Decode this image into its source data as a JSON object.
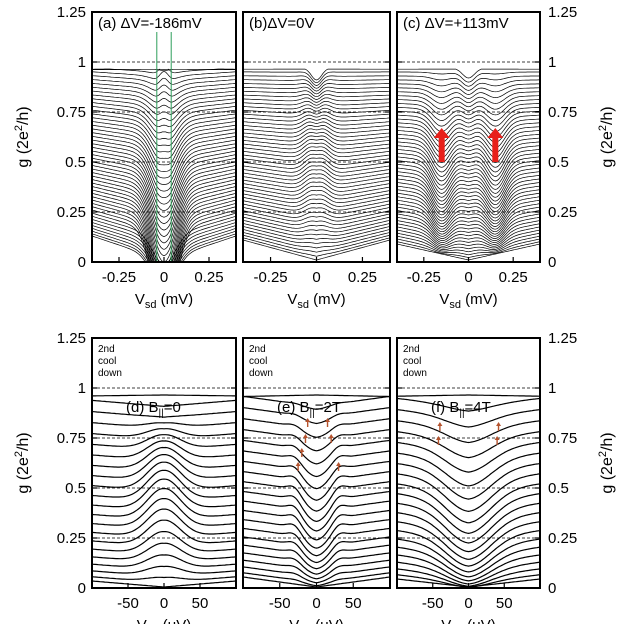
{
  "figure": {
    "ylabel_main": "g (2e",
    "ylabel_sup": "2",
    "ylabel_tail": "/h)",
    "xlabel_main": "V",
    "xlabel_sub": "sd"
  },
  "chart_data": [
    {
      "type": "line",
      "panel": "(a)",
      "title": "(a) ΔV=-186mV",
      "xunit": " (mV)",
      "xlim": [
        -0.4,
        0.4
      ],
      "ylim": [
        0,
        1.25
      ],
      "xticks": [
        -0.25,
        0,
        0.25
      ],
      "xtick_labels": [
        "-0.25",
        "0",
        "0.25"
      ],
      "yticks": [
        0,
        0.25,
        0.5,
        0.75,
        1,
        1.25
      ],
      "ytick_labels": [
        "0",
        "0.25",
        "0.5",
        "0.75",
        "1",
        "1.25"
      ],
      "reference_lines_y": [
        0.25,
        0.5,
        0.75,
        1.0
      ],
      "vertical_markers_x": [
        -0.04,
        0.04
      ],
      "vertical_marker_color": "#2e9e5a",
      "curve_count": 50,
      "trace_at_zero_bias": [
        0.02,
        0.03,
        0.05,
        0.07,
        0.1,
        0.13,
        0.16,
        0.2,
        0.24,
        0.28,
        0.32,
        0.36,
        0.4,
        0.44,
        0.48,
        0.52,
        0.56,
        0.6,
        0.64,
        0.68,
        0.72,
        0.76,
        0.8,
        0.84,
        0.88,
        0.91,
        0.94,
        0.96
      ]
    },
    {
      "type": "line",
      "panel": "(b)",
      "title": "(b)ΔV=0V",
      "xunit": " (mV)",
      "xlim": [
        -0.4,
        0.4
      ],
      "ylim": [
        0,
        1.25
      ],
      "xticks": [
        -0.25,
        0,
        0.25
      ],
      "xtick_labels": [
        "-0.25",
        "0",
        "0.25"
      ],
      "yticks": [
        0,
        0.25,
        0.5,
        0.75,
        1,
        1.25
      ],
      "reference_lines_y": [
        0.25,
        0.5,
        0.75,
        1.0
      ],
      "curve_count": 50,
      "trace_at_zero_bias": [
        0.02,
        0.04,
        0.07,
        0.11,
        0.15,
        0.2,
        0.25,
        0.3,
        0.35,
        0.4,
        0.45,
        0.5,
        0.55,
        0.6,
        0.65,
        0.7,
        0.75,
        0.8,
        0.85,
        0.9,
        0.94,
        0.98,
        1.02
      ]
    },
    {
      "type": "line",
      "panel": "(c)",
      "title": "(c) ΔV=+113mV",
      "xunit": " (mV)",
      "xlim": [
        -0.4,
        0.4
      ],
      "ylim": [
        0,
        1.25
      ],
      "xticks": [
        -0.25,
        0,
        0.25
      ],
      "xtick_labels": [
        "-0.25",
        "0",
        "0.25"
      ],
      "yticks": [
        0,
        0.25,
        0.5,
        0.75,
        1,
        1.25
      ],
      "ytick_labels": [
        "0",
        "0.25",
        "0.5",
        "0.75",
        "1",
        "1.25"
      ],
      "reference_lines_y": [
        0.25,
        0.5,
        0.75,
        1.0
      ],
      "annotation_arrows_x": [
        -0.15,
        0.15
      ],
      "annotation_arrow_y": [
        0.5,
        0.67
      ],
      "annotation_color": "#e8201a",
      "curve_count": 50,
      "trace_at_zero_bias": [
        0.02,
        0.04,
        0.06,
        0.09,
        0.12,
        0.16,
        0.2,
        0.24,
        0.29,
        0.34,
        0.39,
        0.44,
        0.5,
        0.56,
        0.62,
        0.68,
        0.74,
        0.8,
        0.86,
        0.92,
        0.97
      ]
    },
    {
      "type": "line",
      "panel": "(d)",
      "title": "(d) B",
      "title_sub": "||",
      "title_tail": "=0",
      "note": [
        "2nd",
        "cool",
        "down"
      ],
      "xunit": " (μV)",
      "xlim": [
        -100,
        100
      ],
      "ylim": [
        0,
        1.25
      ],
      "xticks": [
        -50,
        0,
        50
      ],
      "xtick_labels": [
        "-50",
        "0",
        "50"
      ],
      "yticks": [
        0,
        0.25,
        0.5,
        0.75,
        1,
        1.25
      ],
      "ytick_labels": [
        "0",
        "0.25",
        "0.5",
        "0.75",
        "1",
        "1.25"
      ],
      "reference_lines_y": [
        0.25,
        0.5,
        0.75,
        1.0
      ],
      "curve_count": 22,
      "trace_at_zero_bias": [
        0.02,
        0.05,
        0.1,
        0.18,
        0.28,
        0.38,
        0.47,
        0.55,
        0.62,
        0.68,
        0.73,
        0.78,
        0.82,
        0.86,
        0.89,
        0.91,
        0.93,
        0.94,
        0.945,
        0.95,
        0.955,
        0.96
      ]
    },
    {
      "type": "line",
      "panel": "(e)",
      "title": "(e) B",
      "title_sub": "||",
      "title_tail": "=2T",
      "note": [
        "2nd",
        "cool",
        "down"
      ],
      "xunit": " (μV)",
      "xlim": [
        -100,
        100
      ],
      "ylim": [
        0,
        1.25
      ],
      "xticks": [
        -50,
        0,
        50
      ],
      "xtick_labels": [
        "-50",
        "0",
        "50"
      ],
      "yticks": [
        0,
        0.25,
        0.5,
        0.75,
        1,
        1.25
      ],
      "reference_lines_y": [
        0.25,
        0.5,
        0.75,
        1.0
      ],
      "annotation_color": "#b5532e",
      "curve_count": 22,
      "trace_at_zero_bias": [
        0.02,
        0.05,
        0.09,
        0.14,
        0.2,
        0.26,
        0.32,
        0.38,
        0.44,
        0.5,
        0.56,
        0.62,
        0.68,
        0.74,
        0.8,
        0.85,
        0.89,
        0.92,
        0.94,
        0.95,
        0.955,
        0.96
      ]
    },
    {
      "type": "line",
      "panel": "(f)",
      "title": "(f) B",
      "title_sub": "||",
      "title_tail": "=4T",
      "note": [
        "2nd",
        "cool",
        "down"
      ],
      "xunit": " (μV)",
      "xlim": [
        -100,
        100
      ],
      "ylim": [
        0,
        1.25
      ],
      "xticks": [
        -50,
        0,
        50
      ],
      "xtick_labels": [
        "-50",
        "0",
        "50"
      ],
      "yticks": [
        0,
        0.25,
        0.5,
        0.75,
        1,
        1.25
      ],
      "ytick_labels": [
        "0",
        "0.25",
        "0.5",
        "0.75",
        "1",
        "1.25"
      ],
      "reference_lines_y": [
        0.25,
        0.5,
        0.75,
        1.0
      ],
      "annotation_color": "#b5532e",
      "curve_count": 22,
      "trace_at_zero_bias": [
        0.02,
        0.04,
        0.07,
        0.11,
        0.16,
        0.21,
        0.27,
        0.33,
        0.39,
        0.45,
        0.51,
        0.57,
        0.63,
        0.69,
        0.75,
        0.8,
        0.85,
        0.89,
        0.92,
        0.94,
        0.95,
        0.96
      ]
    }
  ]
}
